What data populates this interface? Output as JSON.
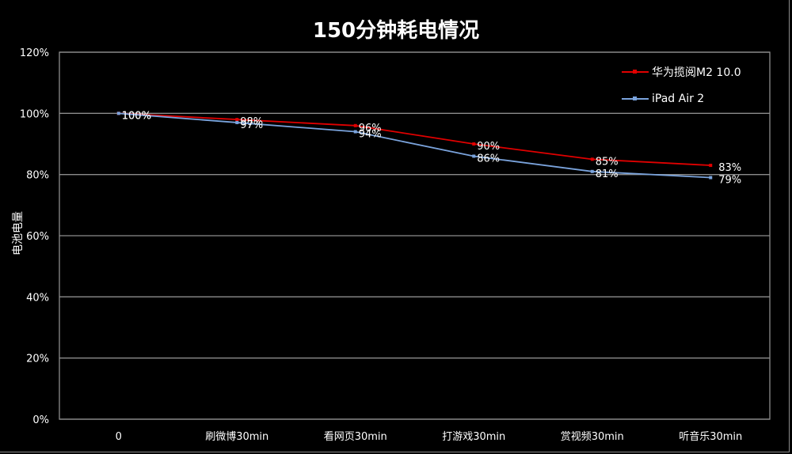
{
  "chart_data": {
    "type": "line",
    "title": "150分钟耗电情况",
    "xlabel": "",
    "ylabel": "电池电量",
    "categories": [
      "0",
      "刷微博30min",
      "看网页30min",
      "打游戏30min",
      "赏视频30min",
      "听音乐30min"
    ],
    "series": [
      {
        "name": "华为揽阅M2 10.0",
        "color": "#e00000",
        "values": [
          100,
          98,
          96,
          90,
          85,
          83
        ]
      },
      {
        "name": "iPad Air 2",
        "color": "#7aa3dc",
        "values": [
          100,
          97,
          94,
          86,
          81,
          79
        ]
      }
    ],
    "ylim": [
      0,
      120
    ],
    "yticks": [
      "0%",
      "20%",
      "40%",
      "60%",
      "80%",
      "100%",
      "120%"
    ],
    "grid": true,
    "legend_position": "top-right",
    "data_labels": true
  },
  "labels": {
    "title": "150分钟耗电情况",
    "ylabel": "电池电量",
    "legend": [
      "华为揽阅M2 10.0",
      "iPad Air 2"
    ]
  }
}
